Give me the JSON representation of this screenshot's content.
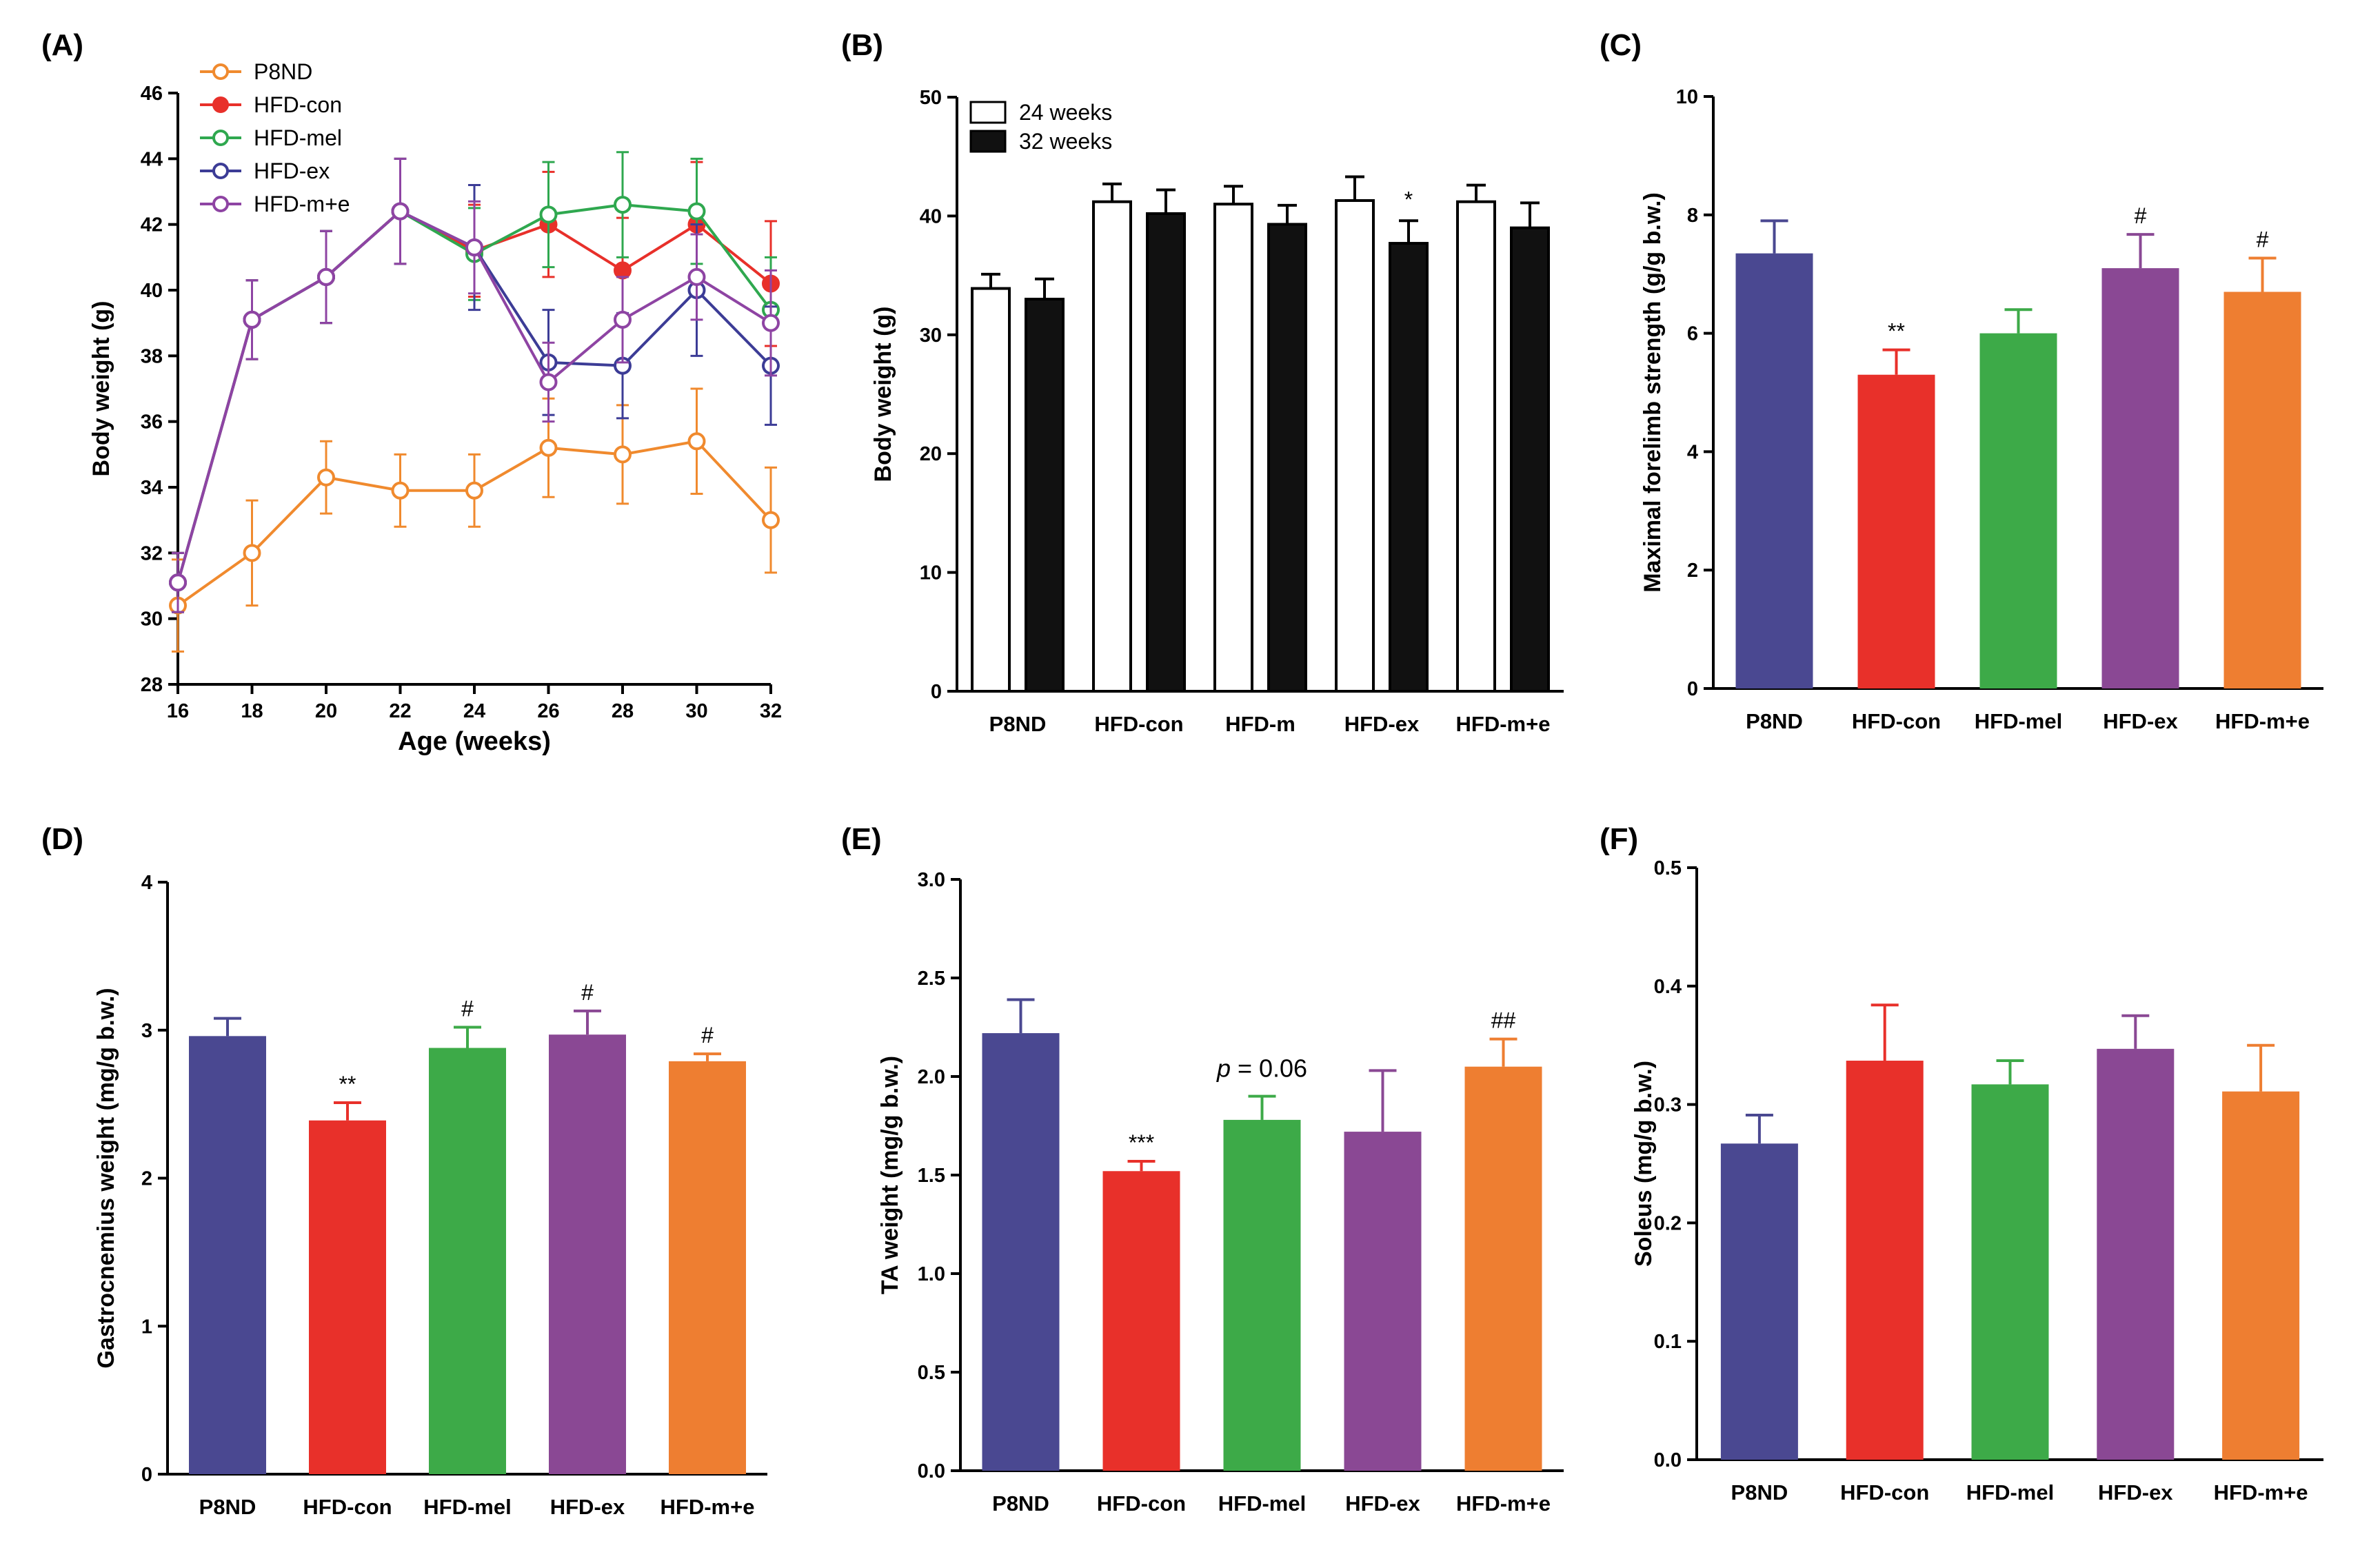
{
  "chart_data": [
    {
      "id": "A",
      "type": "line",
      "label": "(A)",
      "xlabel": "Age (weeks)",
      "ylabel": "Body weight (g)",
      "x": [
        16,
        18,
        20,
        22,
        24,
        26,
        28,
        30,
        32
      ],
      "xticks": [
        "16",
        "18",
        "20",
        "22",
        "24",
        "26",
        "28",
        "30",
        "32"
      ],
      "xlim": [
        16,
        32
      ],
      "ylim": [
        28,
        46
      ],
      "yticks": [
        "28",
        "30",
        "32",
        "34",
        "36",
        "38",
        "40",
        "42",
        "44",
        "46"
      ],
      "series": [
        {
          "name": "P8ND",
          "color": "#F08A2E",
          "marker": "open",
          "values": [
            30.4,
            32.0,
            34.3,
            33.9,
            33.9,
            35.2,
            35.0,
            35.4,
            33.0
          ],
          "errors": [
            1.4,
            1.6,
            1.1,
            1.1,
            1.1,
            1.5,
            1.5,
            1.6,
            1.6
          ]
        },
        {
          "name": "HFD-con",
          "color": "#E8302A",
          "marker": "filled",
          "values": [
            31.1,
            39.1,
            40.4,
            42.4,
            41.2,
            42.0,
            40.6,
            42.0,
            40.2
          ],
          "errors": [
            0.9,
            1.2,
            1.4,
            1.6,
            1.4,
            1.6,
            1.6,
            1.9,
            1.9
          ]
        },
        {
          "name": "HFD-mel",
          "color": "#2FA84F",
          "marker": "open",
          "values": [
            31.1,
            39.1,
            40.4,
            42.4,
            41.1,
            42.3,
            42.6,
            42.4,
            39.4
          ],
          "errors": [
            0.9,
            1.2,
            1.4,
            1.6,
            1.4,
            1.6,
            1.6,
            1.6,
            1.6
          ]
        },
        {
          "name": "HFD-ex",
          "color": "#3C3C96",
          "marker": "open",
          "values": [
            31.1,
            39.1,
            40.4,
            42.4,
            41.3,
            37.8,
            37.7,
            40.0,
            37.7
          ],
          "errors": [
            0.9,
            1.2,
            1.4,
            1.6,
            1.9,
            1.6,
            1.6,
            2.0,
            1.8
          ]
        },
        {
          "name": "HFD-m+e",
          "color": "#8E44A3",
          "marker": "open",
          "values": [
            31.1,
            39.1,
            40.4,
            42.4,
            41.3,
            37.2,
            39.1,
            40.4,
            39.0
          ],
          "errors": [
            0.9,
            1.2,
            1.4,
            1.6,
            1.4,
            1.2,
            1.3,
            1.3,
            1.6
          ]
        }
      ]
    },
    {
      "id": "B",
      "type": "bar",
      "label": "(B)",
      "ylabel": "Body weight (g)",
      "ylim": [
        0,
        50
      ],
      "yticks": [
        "0",
        "10",
        "20",
        "30",
        "40",
        "50"
      ],
      "categories": [
        "P8ND",
        "HFD-con",
        "HFD-m",
        "HFD-ex",
        "HFD-m+e"
      ],
      "series": [
        {
          "name": "24 weeks",
          "fill": "#FFFFFF",
          "values": [
            33.9,
            41.2,
            41.0,
            41.3,
            41.2
          ],
          "errors": [
            1.2,
            1.5,
            1.5,
            2.0,
            1.4
          ]
        },
        {
          "name": "32 weeks",
          "fill": "#111111",
          "values": [
            33.0,
            40.2,
            39.3,
            37.7,
            39.0
          ],
          "errors": [
            1.7,
            2.0,
            1.6,
            1.9,
            2.1
          ]
        }
      ],
      "annotations": [
        {
          "category": 3,
          "series": 1,
          "text": "*"
        }
      ]
    },
    {
      "id": "C",
      "type": "bar",
      "label": "(C)",
      "ylabel": "Maximal forelimb strength (g/g b.w.)",
      "ylim": [
        0,
        10
      ],
      "yticks": [
        "0",
        "2",
        "4",
        "6",
        "8",
        "10"
      ],
      "categories": [
        "P8ND",
        "HFD-con",
        "HFD-mel",
        "HFD-ex",
        "HFD-m+e"
      ],
      "colors": [
        "#4A4891",
        "#E8302A",
        "#3DAA48",
        "#8A4894",
        "#EE7E31"
      ],
      "values": [
        7.35,
        5.3,
        6.0,
        7.1,
        6.7
      ],
      "errors": [
        0.55,
        0.42,
        0.4,
        0.57,
        0.57
      ],
      "annotations": [
        "",
        "**",
        "",
        "#",
        "#"
      ]
    },
    {
      "id": "D",
      "type": "bar",
      "label": "(D)",
      "ylabel": "Gastrocnemius weight (mg/g b.w.)",
      "ylim": [
        0,
        4
      ],
      "yticks": [
        "0",
        "1",
        "2",
        "3",
        "4"
      ],
      "categories": [
        "P8ND",
        "HFD-con",
        "HFD-mel",
        "HFD-ex",
        "HFD-m+e"
      ],
      "colors": [
        "#4A4891",
        "#E8302A",
        "#3DAA48",
        "#8A4894",
        "#EE7E31"
      ],
      "values": [
        2.96,
        2.39,
        2.88,
        2.97,
        2.79
      ],
      "errors": [
        0.12,
        0.12,
        0.14,
        0.16,
        0.05
      ],
      "annotations": [
        "",
        "**",
        "#",
        "#",
        "#"
      ]
    },
    {
      "id": "E",
      "type": "bar",
      "label": "(E)",
      "ylabel": "TA weight (mg/g b.w.)",
      "ylim": [
        0,
        3
      ],
      "yticks": [
        "0.0",
        "0.5",
        "1.0",
        "1.5",
        "2.0",
        "2.5",
        "3.0"
      ],
      "categories": [
        "P8ND",
        "HFD-con",
        "HFD-mel",
        "HFD-ex",
        "HFD-m+e"
      ],
      "colors": [
        "#4A4891",
        "#E8302A",
        "#3DAA48",
        "#8A4894",
        "#EE7E31"
      ],
      "values": [
        2.22,
        1.52,
        1.78,
        1.72,
        2.05
      ],
      "errors": [
        0.17,
        0.05,
        0.12,
        0.31,
        0.14
      ],
      "annotations": [
        "",
        "***",
        "",
        "",
        "##"
      ],
      "p_annotation": {
        "italic": "p",
        "text": " = 0.06"
      }
    },
    {
      "id": "F",
      "type": "bar",
      "label": "(F)",
      "ylabel": "Soleus (mg/g b.w.)",
      "ylim": [
        0,
        0.5
      ],
      "yticks": [
        "0.0",
        "0.1",
        "0.2",
        "0.3",
        "0.4",
        "0.5"
      ],
      "categories": [
        "P8ND",
        "HFD-con",
        "HFD-mel",
        "HFD-ex",
        "HFD-m+e"
      ],
      "colors": [
        "#4A4891",
        "#E8302A",
        "#3DAA48",
        "#8A4894",
        "#EE7E31"
      ],
      "values": [
        0.267,
        0.337,
        0.317,
        0.347,
        0.311
      ],
      "errors": [
        0.024,
        0.047,
        0.02,
        0.028,
        0.039
      ],
      "annotations": [
        "",
        "",
        "",
        "",
        ""
      ]
    }
  ]
}
